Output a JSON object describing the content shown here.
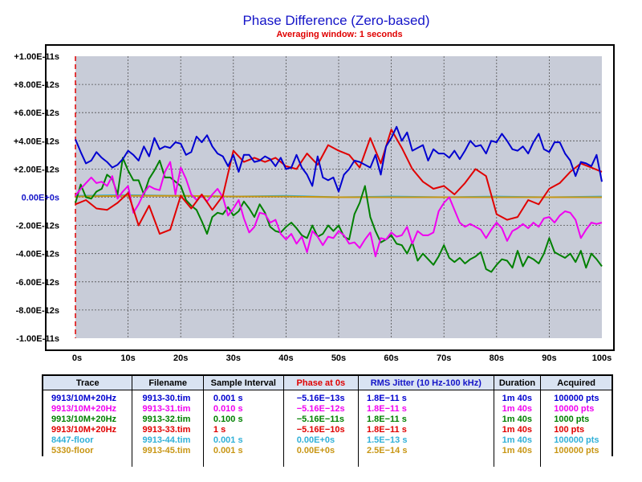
{
  "chart_data": {
    "type": "line",
    "title": "Phase Difference (Zero-based)",
    "subtitle": "Averaging window: 1 seconds",
    "xlim": [
      0,
      100
    ],
    "ylim": [
      -1e-11,
      1e-11
    ],
    "x_ticks": [
      "0s",
      "10s",
      "20s",
      "30s",
      "40s",
      "50s",
      "60s",
      "70s",
      "80s",
      "90s",
      "100s"
    ],
    "y_ticks": [
      "+1.00E-11s",
      "+8.00E-12s",
      "+6.00E-12s",
      "+4.00E-12s",
      "+2.00E-12s",
      "0.00E+0s",
      "-2.00E-12s",
      "-4.00E-12s",
      "-6.00E-12s",
      "-8.00E-12s",
      "-1.00E-11s"
    ],
    "y_tick_values": [
      1e-11,
      8e-12,
      6e-12,
      4e-12,
      2e-12,
      0,
      -2e-12,
      -4e-12,
      -6e-12,
      -8e-12,
      -1e-11
    ],
    "grid": true,
    "plot_background": "#c8ccd8",
    "series": [
      {
        "name": "9913/10M+20Hz",
        "color": "#0000d0",
        "unit": "s",
        "x": [
          0,
          1,
          2,
          3,
          4,
          5,
          6,
          7,
          8,
          9,
          10,
          11,
          12,
          13,
          14,
          15,
          16,
          17,
          18,
          19,
          20,
          21,
          22,
          23,
          24,
          25,
          26,
          27,
          28,
          29,
          30,
          31,
          32,
          33,
          34,
          35,
          36,
          37,
          38,
          39,
          40,
          41,
          42,
          43,
          44,
          45,
          46,
          47,
          48,
          49,
          50,
          51,
          52,
          53,
          54,
          55,
          56,
          57,
          58,
          59,
          60,
          61,
          62,
          63,
          64,
          65,
          66,
          67,
          68,
          69,
          70,
          71,
          72,
          73,
          74,
          75,
          76,
          77,
          78,
          79,
          80,
          81,
          82,
          83,
          84,
          85,
          86,
          87,
          88,
          89,
          90,
          91,
          92,
          93,
          94,
          95,
          96,
          97,
          98,
          99,
          100
        ],
        "y": [
          4.1e-12,
          3.2e-12,
          2.4e-12,
          2.6e-12,
          3.2e-12,
          2.8e-12,
          2.5e-12,
          2.1e-12,
          2.3e-12,
          2.7e-12,
          3.3e-12,
          3e-12,
          2.6e-12,
          3.6e-12,
          2.9e-12,
          4.2e-12,
          3.4e-12,
          3.6e-12,
          3.5e-12,
          3.9e-12,
          3.8e-12,
          3e-12,
          3.2e-12,
          4.3e-12,
          3.9e-12,
          4.4e-12,
          3.6e-12,
          3.1e-12,
          2.9e-12,
          2.2e-12,
          3e-12,
          1.8e-12,
          3e-12,
          3e-12,
          2.5e-12,
          2.6e-12,
          2.9e-12,
          2.7e-12,
          2.2e-12,
          2.8e-12,
          2e-12,
          2.1e-12,
          3e-12,
          2.1e-12,
          1.6e-12,
          8e-13,
          2.9e-12,
          1.4e-12,
          1.2e-12,
          1.4e-12,
          4e-13,
          1.6e-12,
          2e-12,
          2.6e-12,
          2.5e-12,
          2.3e-12,
          2.1e-12,
          3e-12,
          1.6e-12,
          3.6e-12,
          4.2e-12,
          5e-12,
          4e-12,
          4.6e-12,
          3.3e-12,
          3.5e-12,
          3.7e-12,
          2.6e-12,
          3.4e-12,
          3.1e-12,
          3.1e-12,
          2.8e-12,
          3.3e-12,
          2.7e-12,
          3.3e-12,
          4e-12,
          3.6e-12,
          3.7e-12,
          3.1e-12,
          4e-12,
          3.9e-12,
          4.5e-12,
          4e-12,
          3.4e-12,
          3.3e-12,
          3.6e-12,
          3.1e-12,
          3.9e-12,
          4.5e-12,
          3.4e-12,
          3.2e-12,
          3.9e-12,
          3.9e-12,
          3.1e-12,
          2.6e-12,
          1.5e-12,
          2.5e-12,
          2.4e-12,
          2.2e-12,
          3e-12,
          1.1e-12
        ]
      },
      {
        "name": "9913/10M+20Hz",
        "color": "#f000f0",
        "unit": "s",
        "x": [
          0,
          1,
          2,
          3,
          4,
          5,
          6,
          7,
          8,
          9,
          10,
          11,
          12,
          13,
          14,
          15,
          16,
          17,
          18,
          19,
          20,
          21,
          22,
          23,
          24,
          25,
          26,
          27,
          28,
          29,
          30,
          31,
          32,
          33,
          34,
          35,
          36,
          37,
          38,
          39,
          40,
          41,
          42,
          43,
          44,
          45,
          46,
          47,
          48,
          49,
          50,
          51,
          52,
          53,
          54,
          55,
          56,
          57,
          58,
          59,
          60,
          61,
          62,
          63,
          64,
          65,
          66,
          67,
          68,
          69,
          70,
          71,
          72,
          73,
          74,
          75,
          76,
          77,
          78,
          79,
          80,
          81,
          82,
          83,
          84,
          85,
          86,
          87,
          88,
          89,
          90,
          91,
          92,
          93,
          94,
          95,
          96,
          97,
          98,
          99,
          100
        ],
        "y": [
          1e-13,
          6e-13,
          1e-12,
          1.4e-12,
          1e-12,
          1.1e-12,
          8e-13,
          1.5e-12,
          -1e-13,
          4e-13,
          8e-13,
          -1.1e-12,
          -5e-13,
          3e-13,
          8e-13,
          6e-13,
          5e-13,
          1.8e-12,
          2.5e-12,
          2e-13,
          2.1e-12,
          1.3e-12,
          2e-13,
          -2e-13,
          1e-13,
          -3e-13,
          2e-13,
          6e-13,
          0.0,
          -1.3e-12,
          -8e-13,
          -2e-13,
          -1.5e-12,
          -2.5e-12,
          -2.1e-12,
          -1.1e-12,
          -1.2e-12,
          -1.8e-12,
          -1.6e-12,
          -2.6e-12,
          -3e-12,
          -2.6e-12,
          -3.3e-12,
          -2.8e-12,
          -3.9e-12,
          -2.4e-12,
          -2.8e-12,
          -3.4e-12,
          -2.8e-12,
          -2.9e-12,
          -2.4e-12,
          -2.7e-12,
          -3.3e-12,
          -3.2e-12,
          -3.6e-12,
          -3e-12,
          -2.5e-12,
          -4.2e-12,
          -2.9e-12,
          -3e-12,
          -2.5e-12,
          -2.8e-12,
          -2.7e-12,
          -2.1e-12,
          -3.3e-12,
          -2.4e-12,
          -2.7e-12,
          -2.7e-12,
          -2.5e-12,
          -1e-12,
          -4e-13,
          0.0,
          -9e-13,
          -1.8e-12,
          -2.1e-12,
          -1.9e-12,
          -2.1e-12,
          -2.3e-12,
          -2.9e-12,
          -2.3e-12,
          -1.8e-12,
          -2.2e-12,
          -3.1e-12,
          -2.4e-12,
          -2.2e-12,
          -1.9e-12,
          -2.2e-12,
          -1.8e-12,
          -2.1e-12,
          -1.5e-12,
          -1.4e-12,
          -1.8e-12,
          -1.3e-12,
          -1e-12,
          -1.1e-12,
          -1.6e-12,
          -2.9e-12,
          -2.3e-12,
          -1.8e-12,
          -1.9e-12,
          -1.8e-12
        ]
      },
      {
        "name": "9913/10M+20Hz",
        "color": "#008000",
        "unit": "s",
        "x": [
          0,
          1,
          2,
          3,
          4,
          5,
          6,
          7,
          8,
          9,
          10,
          11,
          12,
          13,
          14,
          15,
          16,
          17,
          18,
          19,
          20,
          21,
          22,
          23,
          24,
          25,
          26,
          27,
          28,
          29,
          30,
          31,
          32,
          33,
          34,
          35,
          36,
          37,
          38,
          39,
          40,
          41,
          42,
          43,
          44,
          45,
          46,
          47,
          48,
          49,
          50,
          51,
          52,
          53,
          54,
          55,
          56,
          57,
          58,
          59,
          60,
          61,
          62,
          63,
          64,
          65,
          66,
          67,
          68,
          69,
          70,
          71,
          72,
          73,
          74,
          75,
          76,
          77,
          78,
          79,
          80,
          81,
          82,
          83,
          84,
          85,
          86,
          87,
          88,
          89,
          90,
          91,
          92,
          93,
          94,
          95,
          96,
          97,
          98,
          99,
          100
        ],
        "y": [
          -4e-13,
          9e-13,
          0.0,
          -1e-13,
          4e-13,
          6e-13,
          1.6e-12,
          1.3e-12,
          2e-13,
          2.8e-12,
          1.9e-12,
          1.2e-12,
          1.2e-12,
          2e-13,
          1.3e-12,
          1.9e-12,
          2.6e-12,
          1.4e-12,
          1.4e-12,
          1.1e-12,
          8e-13,
          -2e-13,
          -6e-13,
          -9e-13,
          -1.7e-12,
          -2.6e-12,
          -1.4e-12,
          -1.1e-12,
          -1.2e-12,
          -7e-13,
          -1.3e-12,
          -1e-12,
          -3e-13,
          -8e-13,
          -1.4e-12,
          -5e-13,
          -1.1e-12,
          -2.1e-12,
          -2.4e-12,
          -2.5e-12,
          -2.1e-12,
          -1.8e-12,
          -2.2e-12,
          -2.7e-12,
          -2.9e-12,
          -2e-12,
          -2.8e-12,
          -2.6e-12,
          -2e-12,
          -2.4e-12,
          -2e-12,
          -2.8e-12,
          -3e-12,
          -1.2e-12,
          -4e-13,
          8e-13,
          -1.4e-12,
          -2.4e-12,
          -3.2e-12,
          -3e-12,
          -2.7e-12,
          -3.3e-12,
          -3.4e-12,
          -4e-12,
          -3.2e-12,
          -4.5e-12,
          -4e-12,
          -4.4e-12,
          -4.8e-12,
          -4.2e-12,
          -3.4e-12,
          -4.3e-12,
          -4.6e-12,
          -4.3e-12,
          -4.7e-12,
          -4.4e-12,
          -4.2e-12,
          -3.9e-12,
          -5.1e-12,
          -5.3e-12,
          -4.8e-12,
          -4.4e-12,
          -4.5e-12,
          -5e-12,
          -3.8e-12,
          -4.9e-12,
          -4.2e-12,
          -4.4e-12,
          -4.7e-12,
          -4e-12,
          -2.9e-12,
          -3.9e-12,
          -4.1e-12,
          -4.3e-12,
          -4e-12,
          -4.6e-12,
          -3.8e-12,
          -5e-12,
          -4e-12,
          -4.4e-12,
          -4.9e-12
        ]
      },
      {
        "name": "9913/10M+20Hz",
        "color": "#e00000",
        "unit": "s",
        "x": [
          0,
          2,
          4,
          6,
          8,
          10,
          12,
          14,
          16,
          18,
          20,
          22,
          24,
          26,
          28,
          30,
          32,
          34,
          36,
          38,
          40,
          42,
          44,
          46,
          48,
          50,
          52,
          54,
          56,
          58,
          60,
          62,
          64,
          66,
          68,
          70,
          72,
          74,
          76,
          78,
          80,
          82,
          84,
          86,
          88,
          90,
          92,
          94,
          96,
          98,
          100
        ],
        "y": [
          -5e-13,
          -2e-13,
          -8e-13,
          -9e-13,
          -4e-13,
          3e-13,
          -2e-12,
          -6e-13,
          -2.6e-12,
          -2.3e-12,
          1e-13,
          -8e-13,
          2e-13,
          -9e-13,
          1e-13,
          3.3e-12,
          2.5e-12,
          2.8e-12,
          2.5e-12,
          2.8e-12,
          2.2e-12,
          2e-12,
          3.1e-12,
          2.3e-12,
          3.7e-12,
          3.3e-12,
          3e-12,
          2.1e-12,
          4.2e-12,
          2.4e-12,
          4.8e-12,
          3.5e-12,
          2e-12,
          1.1e-12,
          6e-13,
          8e-13,
          2e-13,
          1e-12,
          2e-12,
          1.5e-12,
          -1.2e-12,
          -1.6e-12,
          -1.4e-12,
          -2e-13,
          -5e-13,
          6e-13,
          1e-12,
          1.8e-12,
          2.4e-12,
          2.1e-12,
          1.8e-12
        ]
      },
      {
        "name": "8447-floor",
        "color": "#30b0d8",
        "unit": "s",
        "x": [
          0,
          10,
          20,
          30,
          40,
          50,
          60,
          70,
          80,
          90,
          100
        ],
        "y": [
          1e-13,
          1.5e-13,
          1e-13,
          5e-14,
          1e-13,
          0.0,
          5e-14,
          0.0,
          5e-14,
          0.0,
          5e-14
        ]
      },
      {
        "name": "5330-floor",
        "color": "#c89614",
        "unit": "s",
        "x": [
          0,
          10,
          20,
          30,
          40,
          50,
          60,
          70,
          80,
          90,
          100
        ],
        "y": [
          5e-14,
          1e-13,
          1e-13,
          5e-14,
          5e-14,
          0.0,
          0.0,
          0.0,
          0.0,
          0.0,
          0.0
        ]
      }
    ]
  },
  "legend": {
    "headers": [
      "Trace",
      "Filename",
      "Sample Interval",
      "Phase at 0s",
      "RMS Jitter (10 Hz-100 kHz)",
      "Duration",
      "Acquired"
    ],
    "rows": [
      {
        "color": "#0000d0",
        "cells": [
          "9913/10M+20Hz",
          "9913-30.tim",
          "0.001 s",
          "−5.16E−13s",
          "1.8E−11 s",
          "1m 40s",
          "100000 pts"
        ]
      },
      {
        "color": "#f000f0",
        "cells": [
          "9913/10M+20Hz",
          "9913-31.tim",
          "0.010 s",
          "−5.16E−12s",
          "1.8E−11 s",
          "1m 40s",
          "10000 pts"
        ]
      },
      {
        "color": "#008000",
        "cells": [
          "9913/10M+20Hz",
          "9913-32.tim",
          "0.100 s",
          "−5.16E−11s",
          "1.8E−11 s",
          "1m 40s",
          "1000 pts"
        ]
      },
      {
        "color": "#e00000",
        "cells": [
          "9913/10M+20Hz",
          "9913-33.tim",
          "1 s",
          "−5.16E−10s",
          "1.8E−11 s",
          "1m 40s",
          "100 pts"
        ]
      },
      {
        "color": "#30b0d8",
        "cells": [
          "8447-floor",
          "9913-44.tim",
          "0.001 s",
          "0.00E+0s",
          "1.5E−13 s",
          "1m 40s",
          "100000 pts"
        ]
      },
      {
        "color": "#c89614",
        "cells": [
          "5330-floor",
          "9913-45.tim",
          "0.001 s",
          "0.00E+0s",
          "2.5E−14 s",
          "1m 40s",
          "100000 pts"
        ]
      }
    ]
  }
}
